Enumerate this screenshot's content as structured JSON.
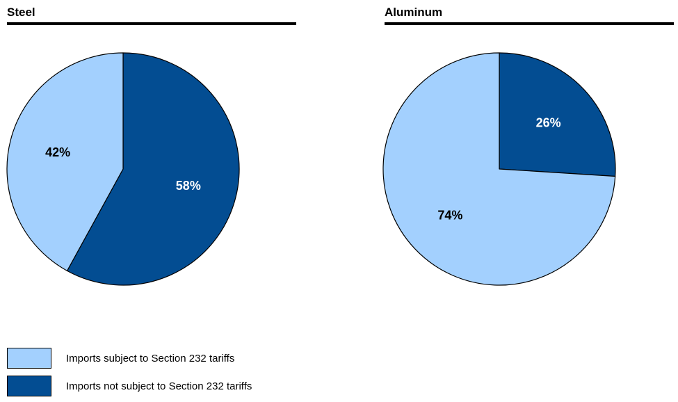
{
  "chart_data": [
    {
      "type": "pie",
      "title": "Steel",
      "slices": [
        {
          "label": "Imports not subject to Section 232 tariffs",
          "value": 58,
          "label_text": "58%",
          "color": "#034d92",
          "label_color": "#ffffff"
        },
        {
          "label": "Imports subject to Section 232 tariffs",
          "value": 42,
          "label_text": "42%",
          "color": "#a3d0fe",
          "label_color": "#000000"
        }
      ]
    },
    {
      "type": "pie",
      "title": "Aluminum",
      "slices": [
        {
          "label": "Imports not subject to Section 232 tariffs",
          "value": 26,
          "label_text": "26%",
          "color": "#034d92",
          "label_color": "#ffffff"
        },
        {
          "label": "Imports subject to Section 232 tariffs",
          "value": 74,
          "label_text": "74%",
          "color": "#a3d0fe",
          "label_color": "#000000"
        }
      ]
    }
  ],
  "legend": [
    {
      "label": "Imports subject to Section 232 tariffs",
      "color": "#a3d0fe"
    },
    {
      "label": "Imports not subject to Section 232 tariffs",
      "color": "#034d92"
    }
  ]
}
